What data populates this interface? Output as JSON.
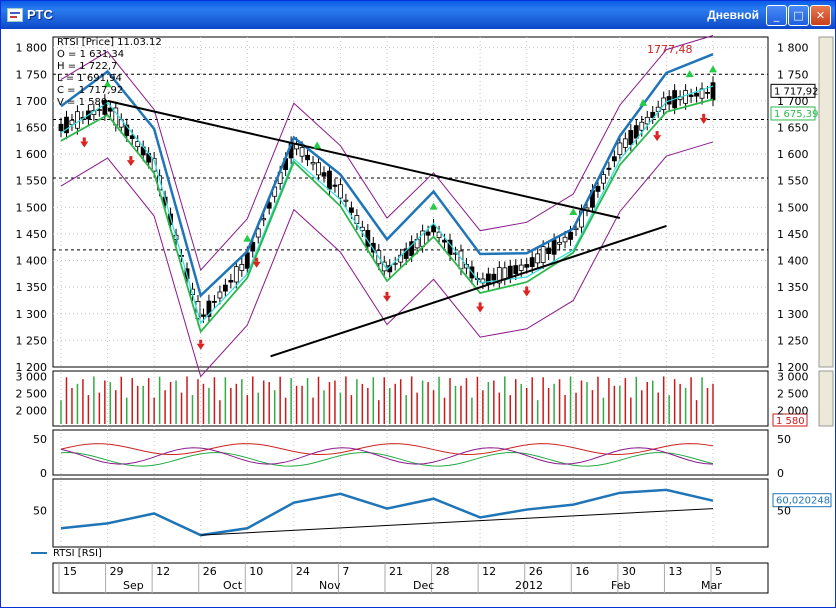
{
  "window": {
    "title": "РТС",
    "period": "Дневной",
    "buttons": {
      "minimize": "_",
      "maximize": "□",
      "close": "✕"
    }
  },
  "legend": {
    "instrument": "RTSI [Price] 11.03.12",
    "open": "O = 1 631,34",
    "high": "H = 1 722,7",
    "low": "L = 1 691,94",
    "close": "C = 1 717,92",
    "volume": "V = 1 580"
  },
  "price_panel": {
    "peak_label": "1777,48",
    "last_price": "1 717,92",
    "ma_value": "1 675,39",
    "y_ticks": [
      "1 800",
      "1 750",
      "1 700",
      "1 650",
      "1 600",
      "1 550",
      "1 500",
      "1 450",
      "1 400",
      "1 350",
      "1 300",
      "1 250",
      "1 200"
    ],
    "right_ticks": [
      "1 800",
      "1 750",
      "1 700",
      "1 650",
      "1 600",
      "1 550",
      "1 500",
      "1 450",
      "1 400",
      "1 350",
      "1 300",
      "1 250",
      "1 200"
    ]
  },
  "volume_panel": {
    "y_ticks": [
      "3 000",
      "2 500",
      "2 000"
    ],
    "right_ticks": [
      "3 000",
      "2 500",
      "2 000"
    ],
    "last_value": "1 580"
  },
  "osc_panel": {
    "y_ticks": [
      "50",
      "0"
    ],
    "right_ticks": [
      "50",
      "0"
    ]
  },
  "rsi_panel": {
    "y_ticks": [
      "50"
    ],
    "right_ticks": [
      "50"
    ],
    "last_value": "60,020248",
    "legend": "RTSI [RSI]"
  },
  "time_axis": {
    "days": [
      "15",
      "29",
      "12",
      "26",
      "10",
      "24",
      "7",
      "21",
      "28",
      "12",
      "26",
      "16",
      "30",
      "13",
      "5"
    ],
    "months": [
      "Sep",
      "Oct",
      "Nov",
      "Dec",
      "2012",
      "Feb",
      "Mar"
    ]
  },
  "chart_data": {
    "type": "line",
    "title": "RTSI [Price] 11.03.12",
    "ylim": [
      1200,
      1820
    ],
    "x": [
      "15 Sep",
      "29 Sep",
      "12 Oct",
      "26 Oct",
      "10 Nov",
      "24 Nov",
      "7 Dec",
      "21 Dec",
      "28 Dec",
      "12 Jan",
      "26 Jan",
      "16 Feb",
      "30 Feb",
      "13 Mar",
      "5 Mar"
    ],
    "series": [
      {
        "values": [
          1650,
          1690,
          1580,
          1290,
          1400,
          1620,
          1530,
          1380,
          1460,
          1360,
          1390,
          1450,
          1610,
          1700,
          1718
        ]
      }
    ],
    "rsi": [
      32,
      37,
      47,
      25,
      32,
      58,
      67,
      52,
      62,
      43,
      51,
      56,
      68,
      71,
      60
    ],
    "volume_ylim": [
      1600,
      3100
    ],
    "grid": true,
    "colors": {
      "ma_long": "#1f75b8",
      "ma_mid": "#2ee0e0",
      "ma_short": "#2bb84c",
      "bands": "#8b1a8b",
      "trendline": "#000000",
      "volume_bars": "#cc1a1a",
      "rsi_line": "#1f75b8"
    }
  }
}
